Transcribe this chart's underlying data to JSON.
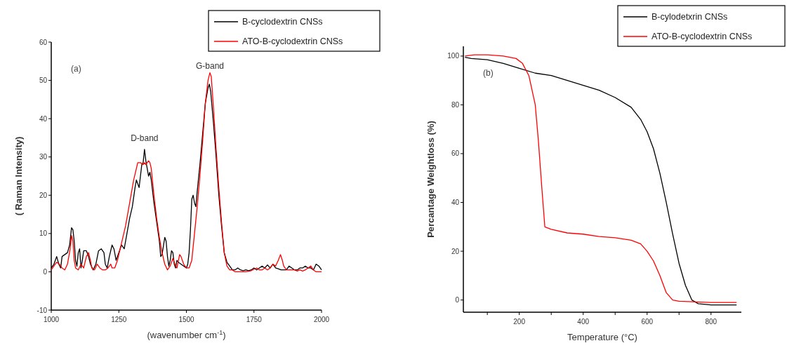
{
  "chart_data": [
    {
      "type": "line",
      "xlabel": "(wavenumber cm$^{-1}$)",
      "ylabel": "( Raman Intensity)",
      "xlim": [
        1000,
        2000
      ],
      "ylim": [
        -10,
        60
      ],
      "xticks": [
        1000,
        1250,
        1500,
        1750,
        2000
      ],
      "yticks": [
        -10,
        0,
        10,
        20,
        30,
        40,
        50,
        60
      ],
      "legend": "top right",
      "grid": false,
      "annotations": [
        "(a)",
        {
          "text": "D-band",
          "x": 1345,
          "y": 33
        },
        {
          "text": "G-band",
          "x": 1587,
          "y": 52
        }
      ],
      "series": [
        {
          "name": "B-cyclodextrin CNSs",
          "color": "#000000",
          "x": [
            1000,
            1010,
            1020,
            1028,
            1035,
            1040,
            1050,
            1060,
            1068,
            1075,
            1080,
            1085,
            1090,
            1095,
            1100,
            1105,
            1110,
            1115,
            1120,
            1130,
            1138,
            1145,
            1155,
            1165,
            1175,
            1185,
            1195,
            1200,
            1207,
            1215,
            1225,
            1232,
            1240,
            1250,
            1260,
            1270,
            1280,
            1290,
            1300,
            1310,
            1315,
            1320,
            1325,
            1330,
            1335,
            1340,
            1345,
            1350,
            1355,
            1360,
            1365,
            1370,
            1380,
            1390,
            1400,
            1405,
            1410,
            1420,
            1425,
            1430,
            1435,
            1440,
            1445,
            1450,
            1455,
            1460,
            1465,
            1470,
            1480,
            1490,
            1500,
            1505,
            1510,
            1515,
            1520,
            1525,
            1530,
            1535,
            1540,
            1550,
            1560,
            1570,
            1580,
            1585,
            1590,
            1600,
            1610,
            1620,
            1630,
            1640,
            1650,
            1660,
            1670,
            1680,
            1690,
            1700,
            1710,
            1720,
            1730,
            1740,
            1750,
            1760,
            1770,
            1780,
            1790,
            1800,
            1810,
            1820,
            1830,
            1840,
            1850,
            1860,
            1870,
            1880,
            1890,
            1900,
            1910,
            1920,
            1930,
            1940,
            1950,
            1960,
            1970,
            1980,
            1990,
            2000
          ],
          "values": [
            1,
            2,
            4,
            2,
            1,
            4,
            4.5,
            5,
            7,
            11.5,
            11,
            8,
            3,
            1.5,
            5,
            6,
            1,
            3,
            5.5,
            5.5,
            4,
            2,
            0.5,
            2,
            5.5,
            6,
            5,
            2,
            1,
            4,
            7,
            6,
            3,
            5,
            7,
            6,
            10,
            14,
            17,
            22,
            24,
            23,
            22,
            25,
            28,
            28.5,
            32,
            29,
            27,
            25,
            26,
            24,
            18,
            13,
            8,
            4,
            4.5,
            9,
            8,
            4,
            1.5,
            3,
            5.5,
            5,
            2,
            1,
            3,
            2.5,
            2,
            1.5,
            1,
            2,
            5,
            11,
            19,
            20,
            18,
            17,
            21,
            28,
            36,
            44,
            48,
            49,
            47,
            39,
            30,
            20,
            12,
            5,
            2.5,
            1.5,
            0.5,
            0.5,
            1,
            0.5,
            0.3,
            0.5,
            0.3,
            0.5,
            1,
            0.5,
            1,
            1.5,
            1,
            1.8,
            1,
            2,
            1,
            0.8,
            0.5,
            0.5,
            0.5,
            1.5,
            1,
            0.5,
            0.5,
            1,
            1,
            1.5,
            1,
            1,
            0.5,
            2,
            1.5,
            0.5
          ]
        },
        {
          "name": "ATO-B-cyclodextrin CNSs",
          "color": "#ff0000",
          "x": [
            1000,
            1010,
            1020,
            1030,
            1040,
            1050,
            1060,
            1070,
            1075,
            1080,
            1085,
            1090,
            1100,
            1110,
            1120,
            1130,
            1138,
            1145,
            1150,
            1160,
            1170,
            1180,
            1190,
            1200,
            1210,
            1220,
            1225,
            1235,
            1245,
            1255,
            1265,
            1275,
            1285,
            1295,
            1305,
            1315,
            1320,
            1330,
            1340,
            1345,
            1350,
            1360,
            1365,
            1370,
            1380,
            1390,
            1400,
            1410,
            1420,
            1430,
            1440,
            1450,
            1460,
            1465,
            1475,
            1480,
            1490,
            1500,
            1510,
            1520,
            1530,
            1540,
            1550,
            1560,
            1570,
            1580,
            1587,
            1592,
            1600,
            1610,
            1620,
            1630,
            1640,
            1650,
            1660,
            1670,
            1680,
            1700,
            1720,
            1740,
            1760,
            1770,
            1780,
            1790,
            1800,
            1810,
            1820,
            1830,
            1840,
            1848,
            1855,
            1860,
            1870,
            1880,
            1900,
            1910,
            1920,
            1930,
            1940,
            1950,
            1960,
            1970,
            1980,
            2000
          ],
          "values": [
            0.5,
            1.5,
            2.5,
            2,
            1,
            0.5,
            2,
            6,
            9.5,
            8,
            3,
            1,
            0.5,
            2,
            1,
            4,
            5,
            3,
            1,
            0.5,
            2,
            1,
            0.5,
            0.5,
            1,
            2,
            1,
            1,
            3,
            6,
            9,
            12,
            16,
            20,
            24,
            27,
            28.5,
            28.5,
            28,
            28.5,
            28,
            29,
            28.5,
            27,
            20,
            14,
            9,
            5,
            2,
            0.5,
            1.5,
            3.5,
            1.5,
            1,
            4.5,
            4,
            2,
            1,
            1,
            3,
            10,
            17,
            25,
            34,
            44,
            50,
            52,
            51,
            43,
            32,
            22,
            13,
            5,
            1.5,
            0.5,
            0.5,
            0,
            0,
            0,
            0.3,
            1,
            0.5,
            0.5,
            1,
            0.5,
            1,
            2,
            1.5,
            3,
            4.5,
            3,
            1.5,
            0.5,
            0.5,
            0.5,
            0.2,
            0.5,
            0.2,
            0.5,
            1,
            1.5,
            0.5,
            0,
            0
          ]
        }
      ]
    },
    {
      "type": "line",
      "xlabel": "Temperature (°C)",
      "ylabel": "Percantage Weightloss (%)",
      "xlim": [
        25,
        895
      ],
      "ylim": [
        -5,
        104
      ],
      "xticks": [
        {
          "value": 100,
          "label": null
        },
        200,
        {
          "value": 300,
          "label": null
        },
        400,
        {
          "value": 500,
          "label": null
        },
        600,
        {
          "value": 700,
          "label": null
        },
        800
      ],
      "yticks": [
        0,
        20,
        40,
        60,
        80,
        100
      ],
      "legend": "top right",
      "grid": false,
      "annotations": [
        "(b)"
      ],
      "series": [
        {
          "name": "B-cylodetxrin CNSs",
          "color": "#000000",
          "x": [
            30,
            50,
            100,
            150,
            200,
            250,
            300,
            350,
            400,
            450,
            500,
            550,
            580,
            600,
            620,
            640,
            660,
            680,
            700,
            720,
            740,
            760,
            800,
            880
          ],
          "values": [
            99.5,
            99,
            98.5,
            97,
            95,
            93,
            92,
            90,
            88,
            86,
            83,
            79,
            74,
            69,
            62,
            52,
            40,
            27,
            15,
            6,
            0,
            -1.5,
            -2,
            -2
          ]
        },
        {
          "name": "ATO-B-cyclodextrin CNSs",
          "color": "#ff0000",
          "x": [
            30,
            60,
            100,
            150,
            190,
            210,
            230,
            250,
            260,
            270,
            280,
            300,
            350,
            400,
            450,
            500,
            550,
            580,
            600,
            620,
            640,
            660,
            680,
            700,
            800,
            880
          ],
          "values": [
            100,
            100.5,
            100.5,
            100,
            99,
            97,
            92,
            80,
            65,
            47,
            30,
            29,
            27.5,
            27,
            26,
            25.5,
            24.5,
            23,
            20,
            16,
            10,
            3,
            0,
            -0.5,
            -1,
            -1
          ]
        }
      ]
    }
  ]
}
